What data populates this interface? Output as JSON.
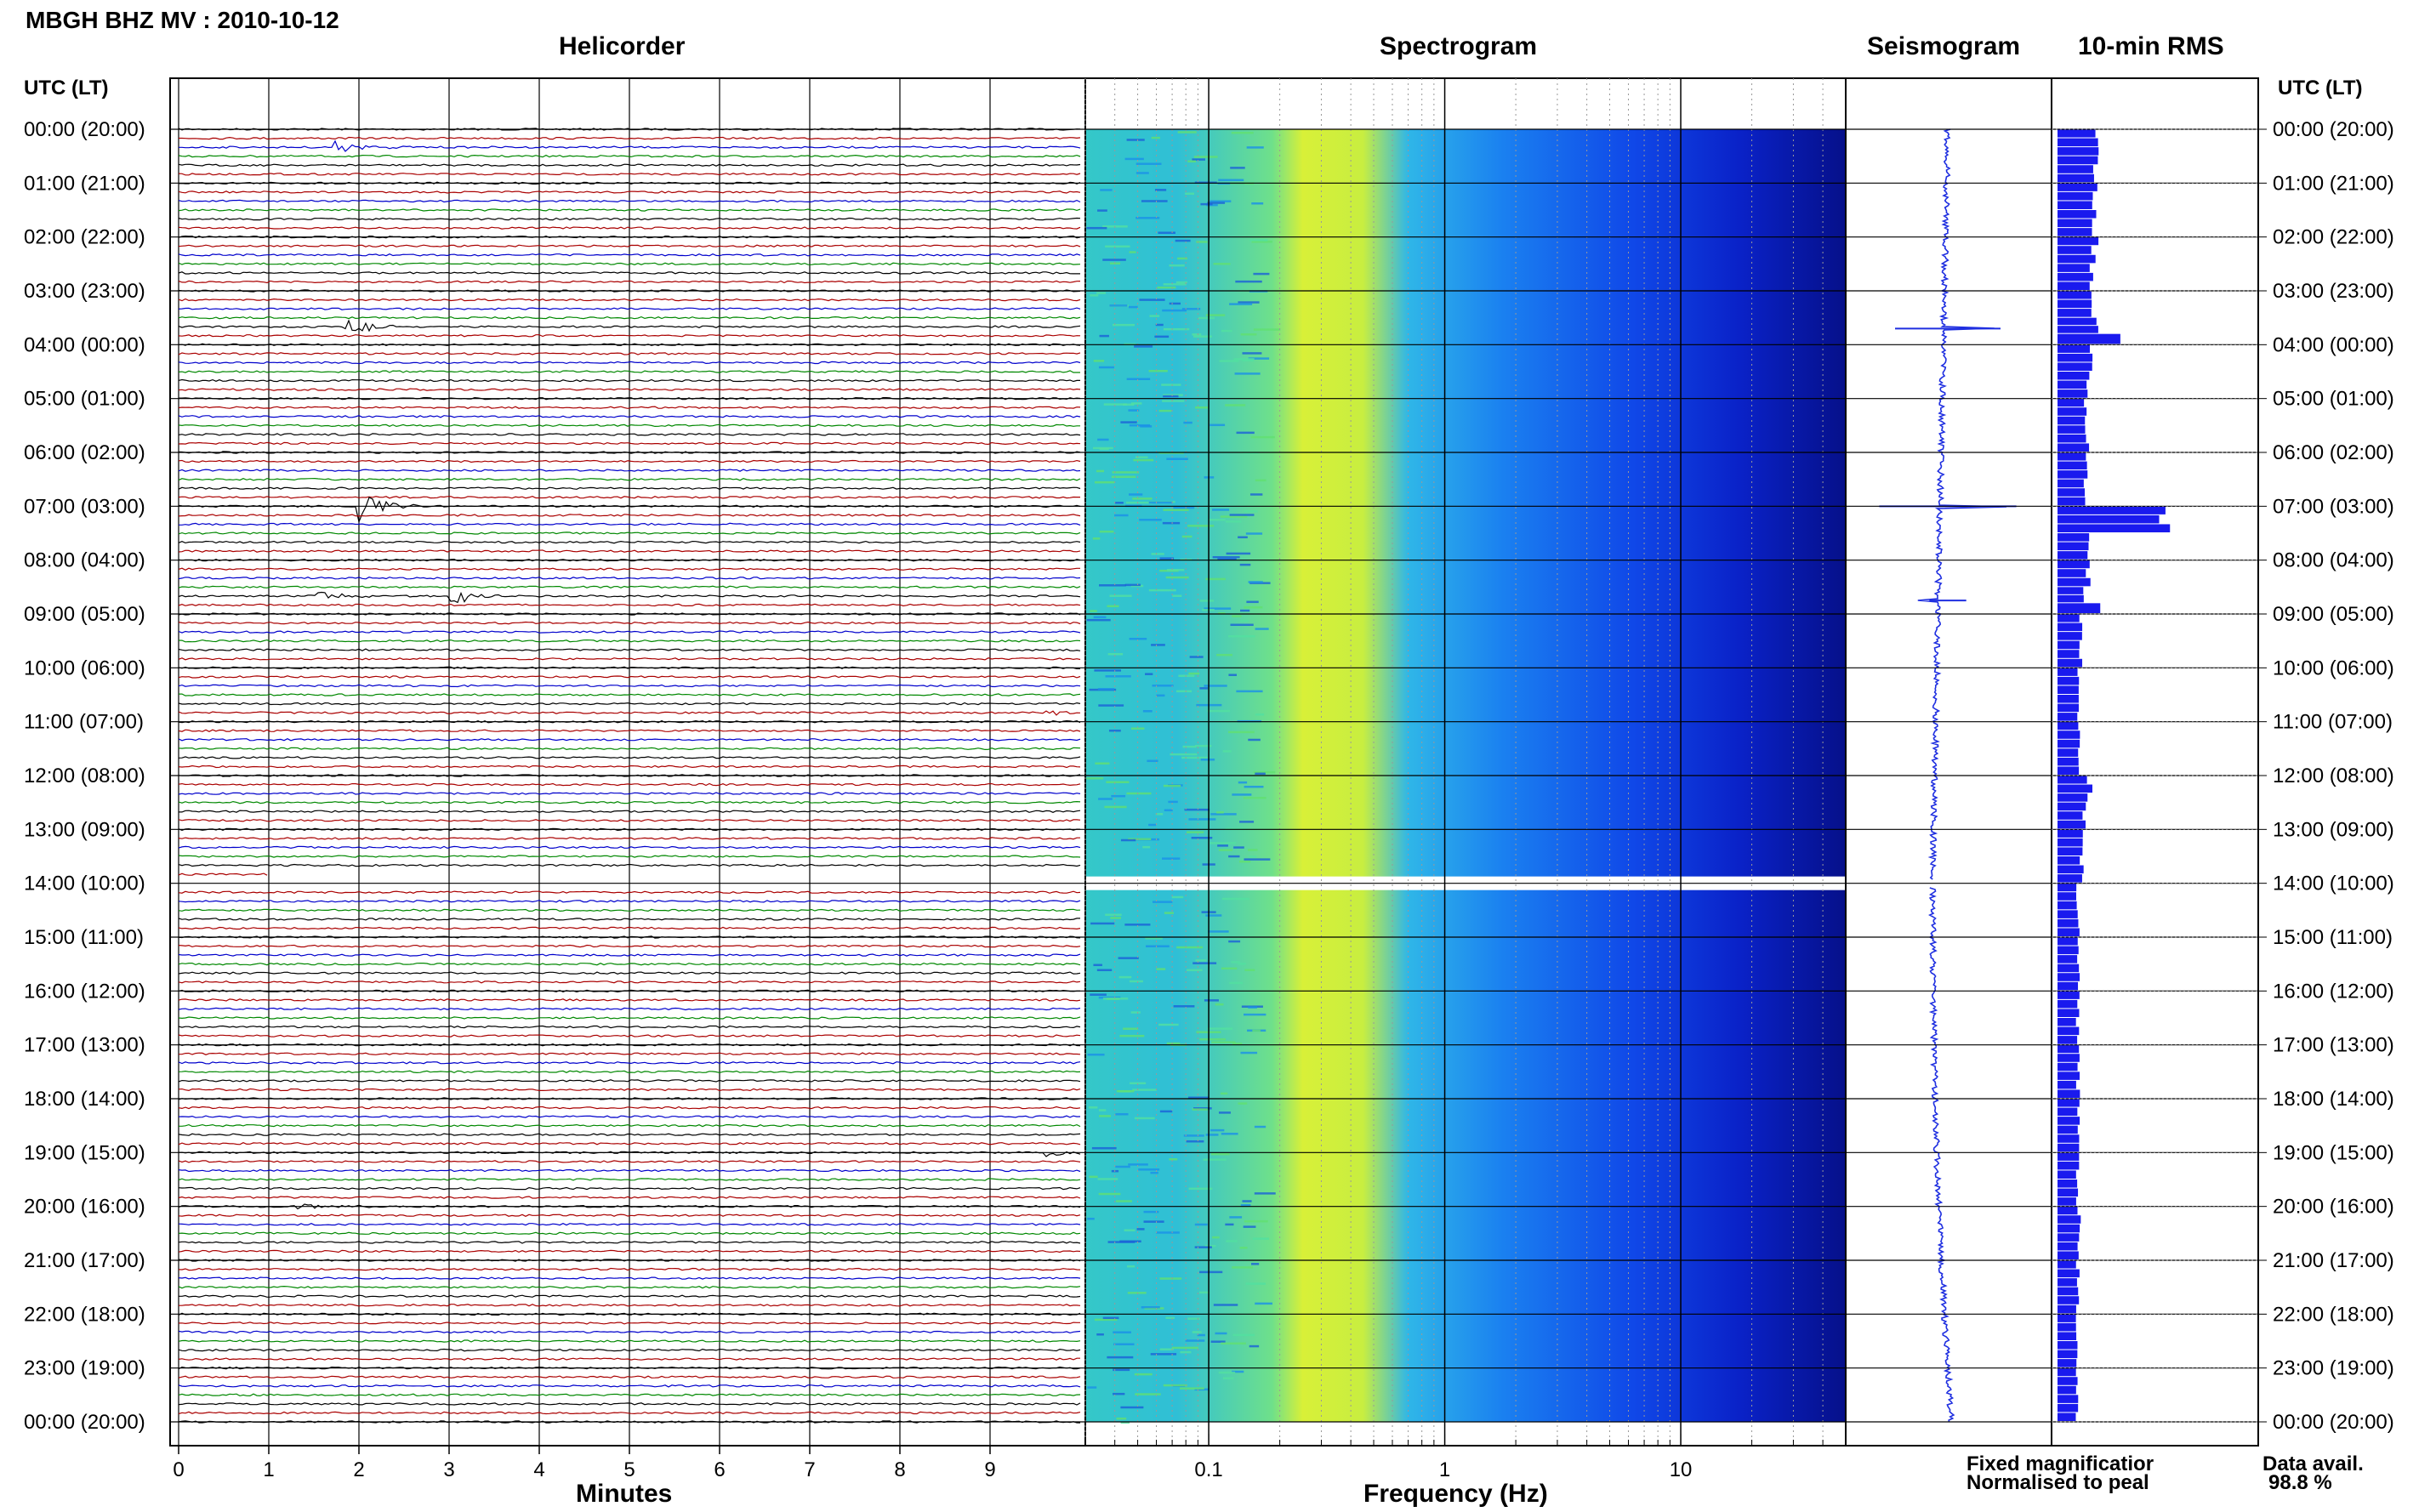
{
  "title": "MBGH BHZ MV : 2010-10-12",
  "panels": {
    "helicorder": "Helicorder",
    "spectrogram": "Spectrogram",
    "seismogram": "Seismogram",
    "rms": "10-min RMS"
  },
  "time_axis_label": "UTC (LT)",
  "legend": {
    "fixed": "Fixed magnificatior",
    "normalised": "Normalised to peal",
    "data_avail_label": "Data avail.",
    "data_avail_value": "98.8 %"
  },
  "colors": {
    "trace_black": "#000000",
    "trace_blue": "#0000cc",
    "trace_green": "#008800",
    "trace_red": "#aa0000",
    "seismogram_blue": "#1f2fe0",
    "rms_blue": "#1a1aee",
    "legend_fixed": "#2222ee",
    "legend_normalised": "#ee1111"
  },
  "chart_data": [
    {
      "type": "line",
      "panel": "Helicorder",
      "xlabel": "Minutes",
      "xlim": [
        0,
        10
      ],
      "xticks": [
        "0",
        "1",
        "2",
        "3",
        "4",
        "5",
        "6",
        "7",
        "8",
        "9"
      ],
      "y_tick_labels": [
        "00:00 (20:00)",
        "01:00 (21:00)",
        "02:00 (22:00)",
        "03:00 (23:00)",
        "04:00 (00:00)",
        "05:00 (01:00)",
        "06:00 (02:00)",
        "07:00 (03:00)",
        "08:00 (04:00)",
        "09:00 (05:00)",
        "10:00 (06:00)",
        "11:00 (07:00)",
        "12:00 (08:00)",
        "13:00 (09:00)",
        "14:00 (10:00)",
        "15:00 (11:00)",
        "16:00 (12:00)",
        "17:00 (13:00)",
        "18:00 (14:00)",
        "19:00 (15:00)",
        "20:00 (16:00)",
        "21:00 (17:00)",
        "22:00 (18:00)",
        "23:00 (19:00)",
        "00:00 (20:00)"
      ],
      "rows_per_hour": 6,
      "row_color_cycle": [
        "black",
        "red",
        "blue",
        "green",
        "black",
        "red"
      ],
      "events": [
        {
          "hour": 0.3,
          "minute": 1.7,
          "amp": 0.6
        },
        {
          "hour": 3.6,
          "minute": 1.8,
          "amp": 1.0
        },
        {
          "hour": 7.0,
          "minute": 2.0,
          "amp": 1.3
        },
        {
          "hour": 8.7,
          "minute": 1.5,
          "amp": 0.5
        },
        {
          "hour": 8.7,
          "minute": 3.0,
          "amp": 0.8
        },
        {
          "hour": 10.8,
          "minute": 9.6,
          "amp": 0.3
        },
        {
          "hour": 18.98,
          "minute": 9.6,
          "amp": 0.35
        },
        {
          "hour": 19.98,
          "minute": 1.3,
          "amp": 0.4
        }
      ],
      "gap": {
        "from_hour": 13.9,
        "to_hour": 14.1
      }
    },
    {
      "type": "heatmap",
      "panel": "Spectrogram",
      "xlabel": "Frequency (Hz)",
      "xscale": "log",
      "xlim": [
        0.03,
        50
      ],
      "xticks": [
        "0.1",
        "1",
        "10"
      ],
      "peak_band_hz": [
        0.25,
        0.45
      ],
      "gap_hour": 14.0
    },
    {
      "type": "line",
      "panel": "Seismogram",
      "spikes": [
        {
          "hour": 3.7,
          "amp": 1.0
        },
        {
          "hour": 7.0,
          "amp": 1.3
        },
        {
          "hour": 8.75,
          "amp": 0.35
        }
      ],
      "gap_hour": 14.0
    },
    {
      "type": "bar",
      "panel": "10-min RMS",
      "hours": [
        0,
        0.5,
        1,
        1.5,
        2,
        2.5,
        3,
        3.5,
        3.8,
        4,
        4.5,
        5,
        5.5,
        6,
        6.5,
        7,
        7.5,
        8,
        8.5,
        8.8,
        9,
        10,
        11,
        12,
        12.5,
        13,
        14,
        15,
        16,
        17,
        18,
        19,
        20,
        21,
        22,
        23,
        24
      ],
      "values": [
        0.6,
        0.55,
        0.55,
        0.52,
        0.55,
        0.5,
        0.5,
        0.55,
        1.0,
        0.5,
        0.45,
        0.4,
        0.45,
        0.42,
        0.4,
        1.55,
        0.45,
        0.45,
        0.4,
        0.6,
        0.35,
        0.32,
        0.3,
        0.48,
        0.4,
        0.35,
        0.3,
        0.3,
        0.3,
        0.3,
        0.32,
        0.3,
        0.32,
        0.3,
        0.28,
        0.28,
        0.28
      ]
    }
  ]
}
